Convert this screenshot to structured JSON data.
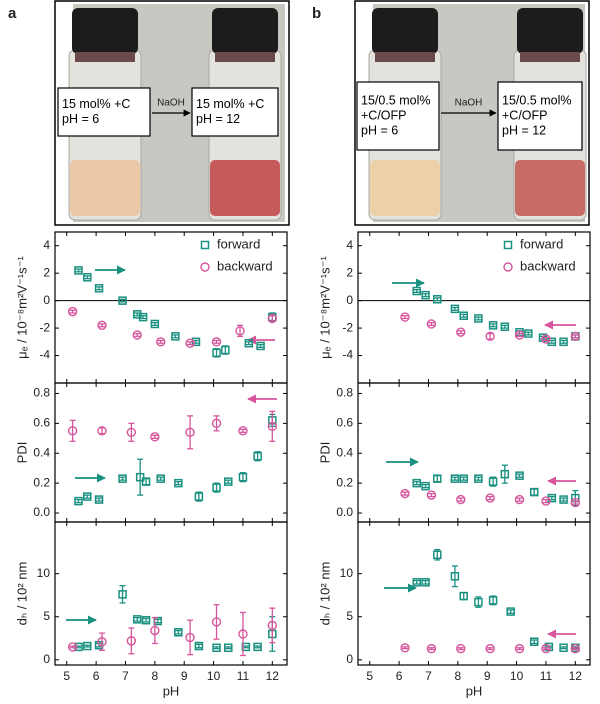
{
  "photos": [
    {
      "letter": "a",
      "before": [
        "15 mol% +C",
        "pH = 6"
      ],
      "reagent": "NaOH",
      "after": [
        "15 mol% +C",
        "pH = 12"
      ]
    },
    {
      "letter": "b",
      "before": [
        "15/0.5 mol%",
        "+C/OFP",
        "pH = 6"
      ],
      "reagent": "NaOH",
      "after": [
        "15/0.5 mol%",
        "+C/OFP",
        "pH = 12"
      ]
    }
  ],
  "chart_data": [
    {
      "type": "scatter",
      "ylabel": "μₑ / 10⁻⁸m²V⁻¹s⁻¹",
      "xlim": [
        4.6,
        12.5
      ],
      "xticks": [
        5,
        6,
        7,
        8,
        9,
        10,
        11,
        12
      ],
      "show_xtick_labels": false,
      "ylim": [
        -6,
        5
      ],
      "yticks": [
        -4,
        -2,
        0,
        2,
        4
      ],
      "zero_line": true,
      "legend": "upper right",
      "series": [
        {
          "name": "forward",
          "color": "#1a9080",
          "marker": "square",
          "x": [
            5.4,
            5.7,
            6.1,
            6.9,
            7.4,
            7.6,
            8.0,
            8.7,
            9.4,
            10.1,
            10.4,
            11.2,
            11.6,
            12.0
          ],
          "values": [
            2.2,
            1.7,
            0.9,
            0,
            -1.0,
            -1.2,
            -1.7,
            -2.6,
            -3.0,
            -3.8,
            -3.6,
            -3.1,
            -3.3,
            -1.2
          ],
          "errors": [
            0.1,
            0.1,
            0.1,
            0.1,
            0.1,
            0.1,
            0.1,
            0.1,
            0.1,
            0.3,
            0.3,
            0.1,
            0.1,
            0.3
          ]
        },
        {
          "name": "backward",
          "color": "#d6559c",
          "marker": "circle",
          "x": [
            5.2,
            6.2,
            7.4,
            8.2,
            9.2,
            10.1,
            10.9,
            12.0
          ],
          "values": [
            -0.8,
            -1.8,
            -2.5,
            -3.0,
            -3.1,
            -3.0,
            -2.2,
            -1.3
          ],
          "errors": [
            0.1,
            0.1,
            0.1,
            0.1,
            0.1,
            0.1,
            0.4,
            0.2
          ]
        }
      ]
    },
    {
      "type": "scatter",
      "ylabel": "PDI",
      "xlim": [
        4.6,
        12.5
      ],
      "xticks": [
        5,
        6,
        7,
        8,
        9,
        10,
        11,
        12
      ],
      "show_xtick_labels": false,
      "ylim": [
        -0.06,
        0.87
      ],
      "yticks": [
        {
          "value": 0,
          "label": "0.0"
        },
        0.2,
        0.4,
        0.6,
        0.8
      ],
      "series": [
        {
          "color": "#1a9080",
          "marker": "square",
          "x": [
            5.4,
            5.7,
            6.1,
            6.9,
            7.5,
            7.7,
            8.2,
            8.8,
            9.5,
            10.1,
            10.5,
            11.0,
            11.5,
            12.0
          ],
          "values": [
            0.08,
            0.11,
            0.09,
            0.23,
            0.24,
            0.21,
            0.23,
            0.2,
            0.11,
            0.17,
            0.21,
            0.24,
            0.38,
            0.62
          ],
          "errors": [
            0.01,
            0.01,
            0.01,
            0.01,
            0.12,
            0.02,
            0.01,
            0.01,
            0.03,
            0.03,
            0.01,
            0.03,
            0.03,
            0.04
          ]
        },
        {
          "color": "#d6559c",
          "marker": "circle",
          "x": [
            5.2,
            6.2,
            7.2,
            8.0,
            9.2,
            10.1,
            11.0,
            12.0
          ],
          "values": [
            0.55,
            0.55,
            0.54,
            0.51,
            0.54,
            0.6,
            0.55,
            0.58
          ],
          "errors": [
            0.07,
            0.02,
            0.06,
            0.01,
            0.11,
            0.05,
            0.01,
            0.1
          ]
        }
      ]
    },
    {
      "type": "scatter",
      "ylabel": "dₕ / 10² nm",
      "xlabel": "pH",
      "xlim": [
        4.6,
        12.5
      ],
      "xticks": [
        5,
        6,
        7,
        8,
        9,
        10,
        11,
        12
      ],
      "show_xtick_labels": true,
      "ylim": [
        -0.6,
        16
      ],
      "yticks": [
        0,
        5,
        10
      ],
      "series": [
        {
          "color": "#1a9080",
          "marker": "square",
          "x": [
            5.4,
            5.7,
            6.1,
            6.9,
            7.4,
            7.7,
            8.1,
            8.8,
            9.5,
            10.1,
            10.5,
            11.1,
            11.5,
            12.0
          ],
          "values": [
            1.5,
            1.6,
            1.7,
            7.6,
            4.7,
            4.6,
            4.5,
            3.2,
            1.6,
            1.4,
            1.4,
            1.5,
            1.5,
            3.0
          ],
          "errors": [
            0.1,
            0.1,
            0.2,
            1.0,
            0.2,
            0.2,
            0.2,
            0.2,
            0.2,
            0.1,
            0.1,
            0.1,
            0.1,
            2.0
          ]
        },
        {
          "color": "#d6559c",
          "marker": "circle",
          "x": [
            5.2,
            6.2,
            7.2,
            8.0,
            9.2,
            10.1,
            11.0,
            12.0
          ],
          "values": [
            1.5,
            2.1,
            2.2,
            3.4,
            2.6,
            4.4,
            3.0,
            4.0
          ],
          "errors": [
            0.1,
            1.0,
            1.5,
            1.5,
            2.0,
            2.0,
            2.5,
            2.0
          ]
        }
      ]
    },
    {
      "type": "scatter",
      "ylabel": "μₑ / 10⁻⁸m²V⁻¹s⁻¹",
      "xlim": [
        4.6,
        12.5
      ],
      "xticks": [
        5,
        6,
        7,
        8,
        9,
        10,
        11,
        12
      ],
      "show_xtick_labels": false,
      "ylim": [
        -6,
        5
      ],
      "yticks": [
        -4,
        -2,
        0,
        2,
        4
      ],
      "zero_line": true,
      "legend": "upper right",
      "series": [
        {
          "name": "forward",
          "color": "#1a9080",
          "marker": "square",
          "x": [
            6.6,
            6.9,
            7.3,
            7.9,
            8.2,
            8.7,
            9.2,
            9.6,
            10.1,
            10.4,
            10.9,
            11.2,
            11.6,
            12.0
          ],
          "values": [
            0.7,
            0.4,
            0.1,
            -0.6,
            -1.1,
            -1.3,
            -1.8,
            -1.9,
            -2.3,
            -2.4,
            -2.7,
            -3.0,
            -3.0,
            -2.6
          ],
          "errors": [
            0.1,
            0.1,
            0.1,
            0.1,
            0.1,
            0.1,
            0.1,
            0.1,
            0.1,
            0.1,
            0.1,
            0.1,
            0.1,
            0.1
          ]
        },
        {
          "name": "backward",
          "color": "#d6559c",
          "marker": "circle",
          "x": [
            6.2,
            7.1,
            8.1,
            9.1,
            10.1,
            11.0,
            12.0
          ],
          "values": [
            -1.2,
            -1.7,
            -2.3,
            -2.6,
            -2.5,
            -2.8,
            -2.6
          ],
          "errors": [
            0.1,
            0.1,
            0.1,
            0.2,
            0.1,
            0.1,
            0.1
          ]
        }
      ]
    },
    {
      "type": "scatter",
      "ylabel": "PDI",
      "xlim": [
        4.6,
        12.5
      ],
      "xticks": [
        5,
        6,
        7,
        8,
        9,
        10,
        11,
        12
      ],
      "show_xtick_labels": false,
      "ylim": [
        -0.06,
        0.87
      ],
      "yticks": [
        {
          "value": 0,
          "label": "0.0"
        },
        0.2,
        0.4,
        0.6,
        0.8
      ],
      "series": [
        {
          "color": "#1a9080",
          "marker": "square",
          "x": [
            6.6,
            6.9,
            7.3,
            7.9,
            8.2,
            8.7,
            9.2,
            9.6,
            10.1,
            10.6,
            11.2,
            11.6,
            12.0
          ],
          "values": [
            0.2,
            0.18,
            0.23,
            0.23,
            0.23,
            0.23,
            0.21,
            0.26,
            0.25,
            0.14,
            0.1,
            0.09,
            0.1
          ],
          "errors": [
            0.01,
            0.01,
            0.02,
            0.01,
            0.01,
            0.01,
            0.03,
            0.06,
            0.01,
            0.02,
            0.01,
            0.01,
            0.05
          ]
        },
        {
          "color": "#d6559c",
          "marker": "circle",
          "x": [
            6.2,
            7.1,
            8.1,
            9.1,
            10.1,
            11.0,
            12.0
          ],
          "values": [
            0.13,
            0.12,
            0.09,
            0.1,
            0.09,
            0.08,
            0.07
          ],
          "errors": [
            0.01,
            0.01,
            0.01,
            0.01,
            0.01,
            0.01,
            0.01
          ]
        }
      ]
    },
    {
      "type": "scatter",
      "ylabel": "dₕ / 10² nm",
      "xlabel": "pH",
      "xlim": [
        4.6,
        12.5
      ],
      "xticks": [
        5,
        6,
        7,
        8,
        9,
        10,
        11,
        12
      ],
      "show_xtick_labels": true,
      "ylim": [
        -0.6,
        16
      ],
      "yticks": [
        0,
        5,
        10
      ],
      "series": [
        {
          "color": "#1a9080",
          "marker": "square",
          "x": [
            6.6,
            6.9,
            7.3,
            7.9,
            8.2,
            8.7,
            9.2,
            9.8,
            10.6,
            11.1,
            11.6,
            12.0
          ],
          "values": [
            9.0,
            9.0,
            12.2,
            9.7,
            7.4,
            6.7,
            6.9,
            5.6,
            2.1,
            1.5,
            1.4,
            1.4
          ],
          "errors": [
            0.2,
            0.2,
            0.6,
            1.2,
            0.4,
            0.6,
            0.5,
            0.2,
            0.2,
            0.1,
            0.1,
            0.1
          ]
        },
        {
          "color": "#d6559c",
          "marker": "circle",
          "x": [
            6.2,
            7.1,
            8.1,
            9.1,
            10.1,
            11.0,
            12.0
          ],
          "values": [
            1.4,
            1.3,
            1.3,
            1.3,
            1.3,
            1.3,
            1.3
          ],
          "errors": [
            0.1,
            0.1,
            0.1,
            0.1,
            0.1,
            0.1,
            0.1
          ]
        }
      ]
    }
  ]
}
